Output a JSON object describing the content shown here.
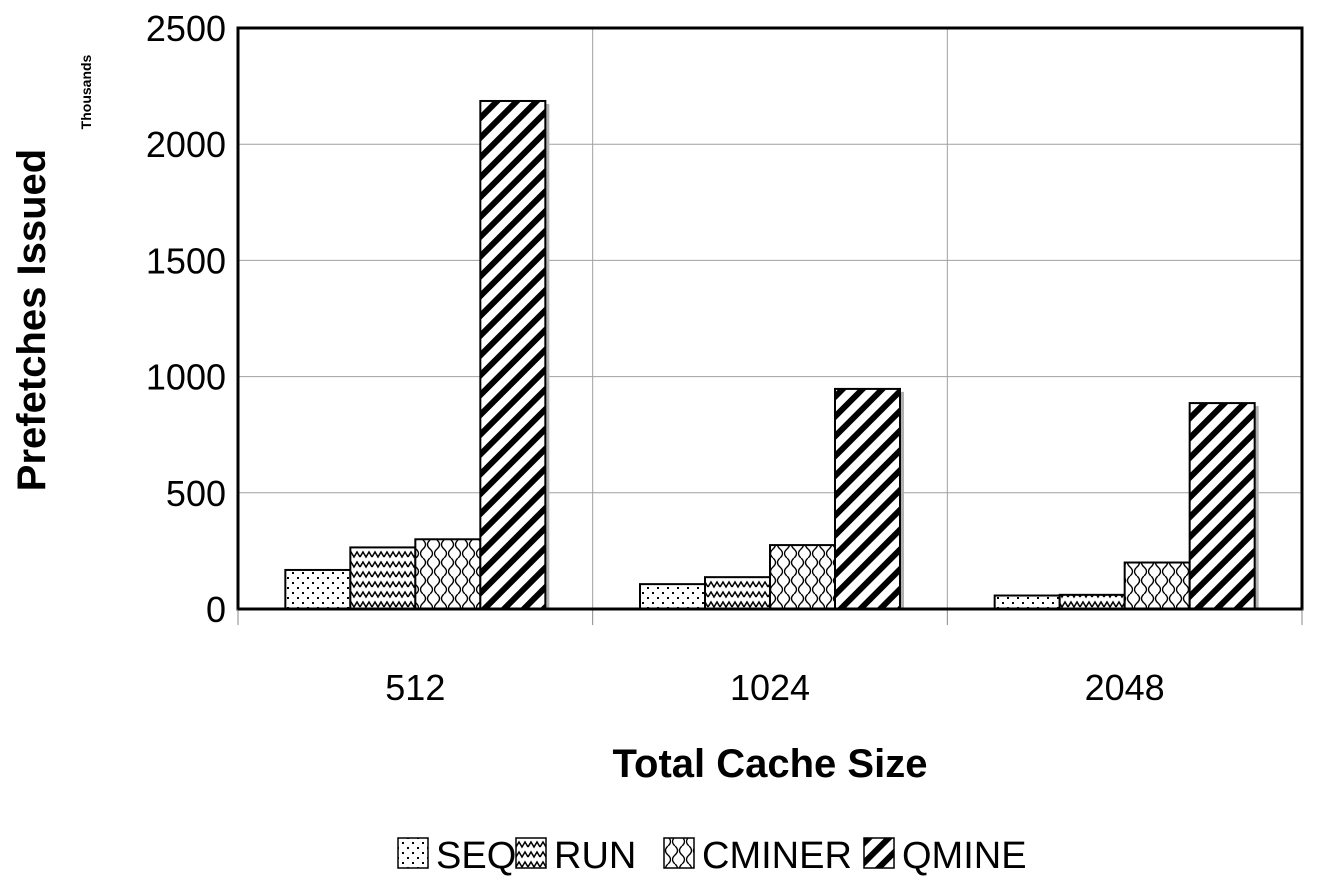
{
  "chart_data": {
    "type": "bar",
    "title": "",
    "xlabel": "Total Cache Size",
    "ylabel": "Prefetches Issued",
    "yunit_label": "Thousands",
    "categories": [
      "512",
      "1024",
      "2048"
    ],
    "ylim": [
      0,
      2500
    ],
    "yticks": [
      0,
      500,
      1000,
      1500,
      2000,
      2500
    ],
    "grid": true,
    "legend_position": "bottom",
    "series": [
      {
        "name": "SEQ",
        "pattern": "dots",
        "values": [
          168,
          107,
          58
        ]
      },
      {
        "name": "RUN",
        "pattern": "zigzag",
        "values": [
          265,
          137,
          61
        ]
      },
      {
        "name": "CMINER",
        "pattern": "waves",
        "values": [
          300,
          275,
          200
        ]
      },
      {
        "name": "QMINE",
        "pattern": "diagonal-stripes",
        "values": [
          2186,
          947,
          886
        ]
      }
    ],
    "colors": {
      "bar_fill": "#ffffff",
      "ink": "#000000",
      "shadow": "#b0b0b0",
      "grid": "#a0a0a0"
    }
  }
}
